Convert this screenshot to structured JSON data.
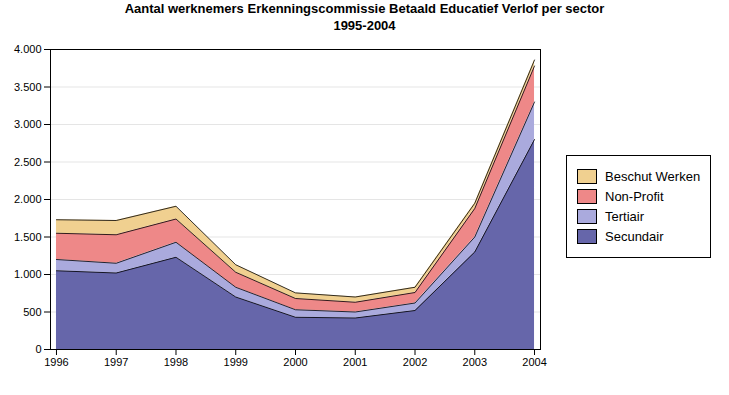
{
  "chart_data": {
    "type": "area",
    "stacked": true,
    "title": "Aantal werknemers Erkenningscommissie Betaald Educatief Verlof per sector",
    "subtitle": "1995-2004",
    "x": [
      1996,
      1997,
      1998,
      1999,
      2000,
      2001,
      2002,
      2003,
      2004
    ],
    "series": [
      {
        "name": "Secundair",
        "color": "#6666aa",
        "values": [
          1050,
          1020,
          1230,
          700,
          430,
          420,
          520,
          1300,
          2800
        ]
      },
      {
        "name": "Tertiair",
        "color": "#aaaadd",
        "values": [
          150,
          130,
          200,
          130,
          100,
          80,
          100,
          200,
          500
        ]
      },
      {
        "name": "Non-Profit",
        "color": "#ee8888",
        "values": [
          350,
          380,
          310,
          200,
          150,
          130,
          140,
          380,
          480
        ]
      },
      {
        "name": "Beschut Werken",
        "color": "#f0d090",
        "values": [
          180,
          190,
          170,
          100,
          75,
          70,
          70,
          70,
          80
        ]
      }
    ],
    "xlim": [
      1995.9,
      2004.1
    ],
    "xticks": [
      1996,
      1997,
      1998,
      1999,
      2000,
      2001,
      2002,
      2003,
      2004
    ],
    "ylim": [
      0,
      4000
    ],
    "yticks": [
      0,
      500,
      {
        "value": 1000,
        "label": "1.000"
      },
      {
        "value": 1500,
        "label": "1.500"
      },
      {
        "value": 2000,
        "label": "2.000"
      },
      {
        "value": 2500,
        "label": "2.500"
      },
      {
        "value": 3000,
        "label": "3.000"
      },
      {
        "value": 3500,
        "label": "3.500"
      },
      {
        "value": 4000,
        "label": "4.000"
      }
    ],
    "grid": true,
    "legend": "right"
  }
}
